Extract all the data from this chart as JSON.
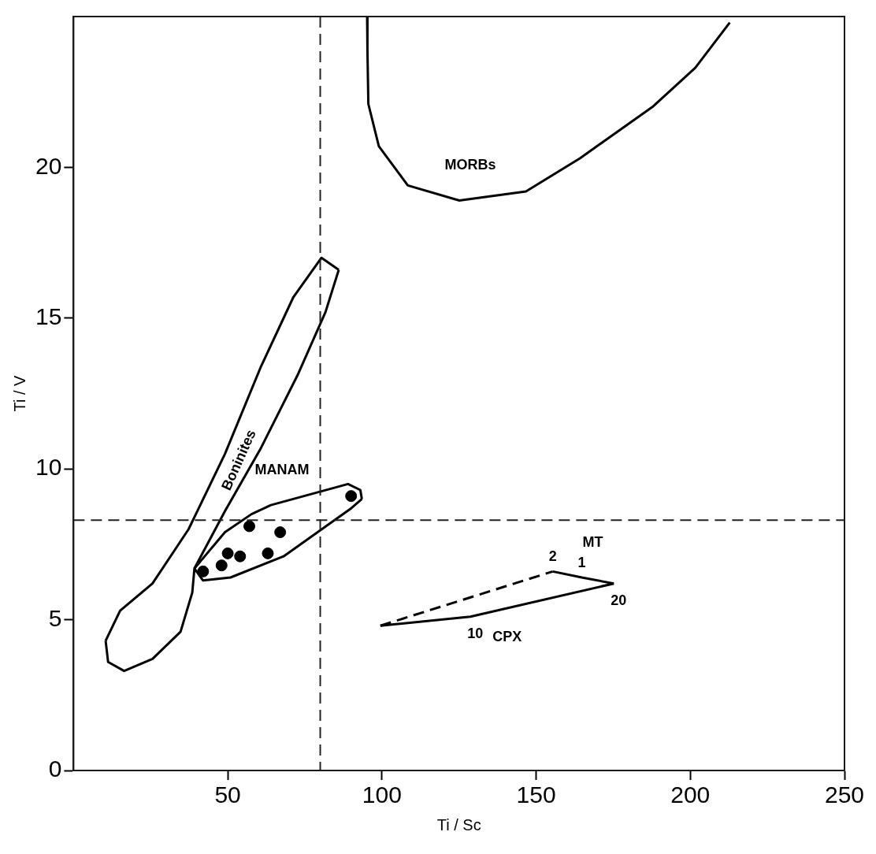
{
  "chart_data": {
    "type": "scatter",
    "xlabel": "Ti / Sc",
    "ylabel": "Ti / V",
    "xlim": [
      0,
      250
    ],
    "xticks": [
      50,
      100,
      150,
      200,
      250
    ],
    "ylim": [
      0,
      25
    ],
    "yticks": [
      0,
      5,
      10,
      15,
      20
    ],
    "grid": false,
    "legend": false,
    "series": [
      {
        "type": "line",
        "name": "Boninites",
        "color": "#000000",
        "marker": "none",
        "line_style": "solid",
        "x": [
          10.4,
          15.1,
          25.6,
          37.3,
          49.1,
          60.8,
          71.3,
          80.4,
          86.0
        ],
        "values": [
          4.3,
          5.3,
          6.2,
          8.0,
          10.5,
          13.4,
          15.7,
          17.0,
          16.6
        ]
      },
      {
        "type": "line",
        "color": "#000000",
        "marker": "none",
        "line_style": "solid",
        "x": [
          10.4,
          11.2,
          16.4,
          25.6,
          34.7,
          38.5,
          39.2,
          49.1,
          60.8,
          72.6,
          81.7,
          86.0
        ],
        "values": [
          4.3,
          3.6,
          3.3,
          3.7,
          4.6,
          5.9,
          6.7,
          8.6,
          10.7,
          13.1,
          15.2,
          16.6
        ]
      },
      {
        "type": "line",
        "name": "MANAM",
        "color": "#000000",
        "marker": "none",
        "line_style": "solid",
        "x": [
          39.2,
          49.1,
          57.7,
          64.0,
          89.0,
          93.0,
          93.5
        ],
        "values": [
          6.7,
          7.9,
          8.5,
          8.8,
          9.5,
          9.3,
          9.0
        ]
      },
      {
        "type": "line",
        "color": "#000000",
        "marker": "none",
        "line_style": "solid",
        "x": [
          39.2,
          42.0,
          50.9,
          68.1,
          90.1,
          93.5
        ],
        "values": [
          6.7,
          6.3,
          6.4,
          7.1,
          8.7,
          9.0
        ]
      },
      {
        "type": "line",
        "name": "MORBs",
        "color": "#000000",
        "marker": "none",
        "line_style": "solid",
        "x": [
          95.2,
          95.3,
          95.6,
          99.0,
          108.4,
          125.1,
          146.7,
          164.2,
          187.7,
          201.6,
          212.8
        ],
        "values": [
          25.0,
          23.9,
          22.1,
          20.7,
          19.4,
          18.9,
          19.2,
          20.3,
          22.0,
          23.3,
          24.8
        ]
      },
      {
        "type": "line",
        "name": "CPX",
        "color": "#000000",
        "marker": "none",
        "line_style": "solid",
        "x": [
          99.5,
          128.7,
          175.2
        ],
        "values": [
          4.8,
          5.1,
          6.2
        ]
      },
      {
        "type": "line",
        "name": "MT",
        "color": "#000000",
        "marker": "none",
        "line_style": "solid",
        "x": [
          155.4,
          164.8,
          175.2
        ],
        "values": [
          6.6,
          6.4,
          6.2
        ]
      },
      {
        "type": "line",
        "color": "#000000",
        "marker": "none",
        "line_style": "dashed",
        "x": [
          99.5,
          155.4
        ],
        "values": [
          4.8,
          6.6
        ]
      },
      {
        "type": "scatter",
        "color": "#000000",
        "marker": "circle",
        "x": [
          42,
          48,
          50,
          54,
          57,
          63,
          67,
          90
        ],
        "values": [
          6.6,
          6.8,
          7.2,
          7.1,
          8.1,
          7.2,
          7.9,
          9.1
        ]
      }
    ],
    "ref_lines": [
      {
        "axis": "x",
        "value": 80,
        "line_style": "dashed",
        "color": "#222222"
      },
      {
        "axis": "y",
        "value": 8.3,
        "line_style": "dashed",
        "color": "#222222"
      }
    ],
    "annotations": [
      {
        "text": "2",
        "x": 155.4,
        "y": 6.6
      },
      {
        "text": "1",
        "x": 164.8,
        "y": 6.4
      },
      {
        "text": "20",
        "x": 175.2,
        "y": 6.2
      },
      {
        "text": "10",
        "x": 128.7,
        "y": 5.1
      }
    ]
  }
}
